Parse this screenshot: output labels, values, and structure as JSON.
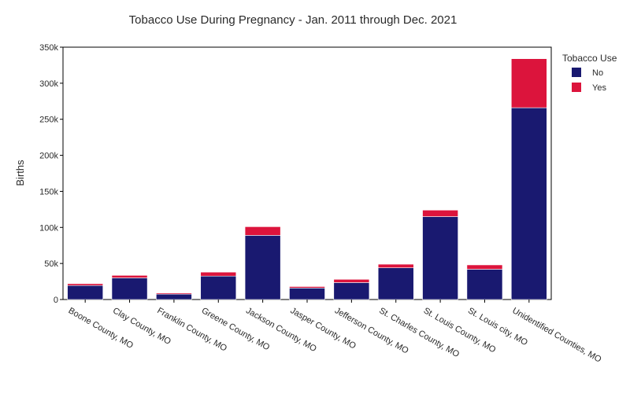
{
  "chart_data": {
    "type": "bar",
    "stacked": true,
    "title": "Tobacco Use During Pregnancy - Jan. 2011 through Dec. 2021",
    "xlabel": "",
    "ylabel": "Births",
    "ylim": [
      0,
      350000
    ],
    "yticks": [
      0,
      50000,
      100000,
      150000,
      200000,
      250000,
      300000,
      350000
    ],
    "ytick_labels": [
      "0",
      "50k",
      "100k",
      "150k",
      "200k",
      "250k",
      "300k",
      "350k"
    ],
    "grid": false,
    "legend_position": "top-right",
    "legend_title": "Tobacco Use",
    "categories": [
      "Boone County, MO",
      "Clay County, MO",
      "Franklin County, MO",
      "Greene County, MO",
      "Jackson County, MO",
      "Jasper County, MO",
      "Jefferson County, MO",
      "St. Charles County, MO",
      "St. Louis County, MO",
      "St. Louis city, MO",
      "Unidentified Counties, MO"
    ],
    "series": [
      {
        "name": "No",
        "color": "#191970",
        "values": [
          19500,
          30000,
          7500,
          32500,
          89000,
          16000,
          23500,
          44000,
          115000,
          42000,
          266000
        ]
      },
      {
        "name": "Yes",
        "color": "#dc143c",
        "values": [
          2500,
          3500,
          1500,
          5500,
          12000,
          2000,
          4500,
          5000,
          9000,
          6000,
          68000
        ]
      }
    ]
  }
}
